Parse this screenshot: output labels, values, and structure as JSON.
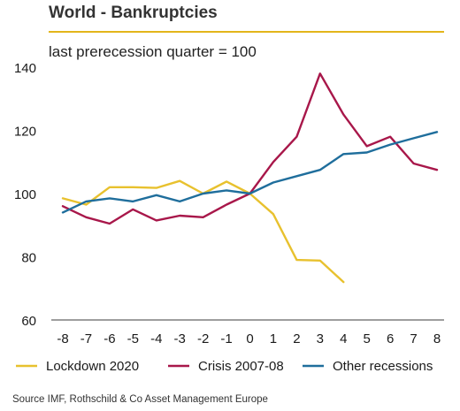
{
  "title": "World - Bankruptcies",
  "source": "Source IMF, Rothschild & Co Asset Management Europe",
  "colors": {
    "title_rule": "#e3b51b",
    "axis": "#7f7f7f"
  },
  "chart_data": {
    "type": "line",
    "subtitle": "last prerecession quarter = 100",
    "x": [
      -8,
      -7,
      -6,
      -5,
      -4,
      -3,
      -2,
      -1,
      0,
      1,
      2,
      3,
      4,
      5,
      6,
      7,
      8
    ],
    "xlim": [
      -8,
      8
    ],
    "ylim": [
      60,
      140
    ],
    "yticks": [
      60,
      80,
      100,
      120,
      140
    ],
    "grid": false,
    "legend_position": "bottom",
    "series": [
      {
        "name": "Lockdown 2020",
        "color": "#e8c12e",
        "values": [
          98.5,
          96.5,
          102,
          102,
          101.8,
          104,
          100,
          103.8,
          100,
          93.5,
          79,
          78.8,
          72,
          null,
          null,
          null,
          null
        ]
      },
      {
        "name": "Crisis 2007-08",
        "color": "#a8174a",
        "values": [
          96,
          92.5,
          90.5,
          95,
          91.5,
          93,
          92.5,
          96.5,
          100,
          110,
          118,
          138,
          125,
          115,
          118,
          109.5,
          107.5
        ]
      },
      {
        "name": "Other recessions",
        "color": "#1f6e9c",
        "values": [
          94,
          97.5,
          98.5,
          97.5,
          99.5,
          97.5,
          100,
          101,
          100,
          103.5,
          105.5,
          107.5,
          112.5,
          113,
          115.5,
          117.5,
          119.5
        ]
      }
    ]
  }
}
